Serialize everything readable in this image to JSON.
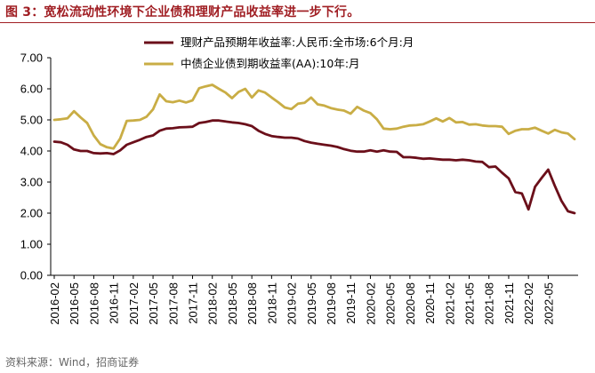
{
  "header": {
    "figure_title": "图 3：宽松流动性环境下企业债和理财产品收益率进一步下行。"
  },
  "footer": {
    "source": "资料来源：Wind，招商证券"
  },
  "colors": {
    "title": "#a01e23",
    "series_wmp": "#6b0f1a",
    "series_bond": "#c9ad45"
  },
  "chart_data": {
    "type": "line",
    "title": "图 3：宽松流动性环境下企业债和理财产品收益率进一步下行。",
    "xlabel": "",
    "ylabel": "",
    "ylim": [
      0,
      7
    ],
    "yticks": [
      "0.00",
      "1.00",
      "2.00",
      "3.00",
      "4.00",
      "5.00",
      "6.00",
      "7.00"
    ],
    "x_start": "2016-02",
    "x_end": "2022-06",
    "xtick_labels": [
      "2016-02",
      "2016-05",
      "2016-08",
      "2016-11",
      "2017-02",
      "2017-05",
      "2017-08",
      "2017-11",
      "2018-02",
      "2018-05",
      "2018-08",
      "2018-11",
      "2019-02",
      "2019-05",
      "2019-08",
      "2019-11",
      "2020-02",
      "2020-05",
      "2020-08",
      "2020-11",
      "2021-02",
      "2021-05",
      "2021-08",
      "2021-11",
      "2022-02",
      "2022-05"
    ],
    "legend_position": "top",
    "series": [
      {
        "name": "理财产品预期年收益率:人民币:全市场:6个月:月",
        "values": [
          4.3,
          4.28,
          4.2,
          4.05,
          4.0,
          4.0,
          3.93,
          3.92,
          3.93,
          3.9,
          4.02,
          4.2,
          4.28,
          4.36,
          4.45,
          4.5,
          4.65,
          4.72,
          4.73,
          4.76,
          4.77,
          4.78,
          4.9,
          4.93,
          4.98,
          4.98,
          4.95,
          4.92,
          4.9,
          4.86,
          4.8,
          4.65,
          4.55,
          4.48,
          4.45,
          4.43,
          4.43,
          4.4,
          4.32,
          4.27,
          4.23,
          4.2,
          4.17,
          4.13,
          4.06,
          4.01,
          3.98,
          3.98,
          4.02,
          3.98,
          4.02,
          3.98,
          3.97,
          3.8,
          3.8,
          3.78,
          3.75,
          3.76,
          3.74,
          3.72,
          3.72,
          3.7,
          3.72,
          3.7,
          3.66,
          3.65,
          3.48,
          3.5,
          3.3,
          3.12,
          2.68,
          2.63,
          2.12,
          2.85,
          3.13,
          3.4,
          2.88,
          2.4,
          2.06,
          2.0
        ]
      },
      {
        "name": "中债企业债到期收益率(AA):10年:月",
        "values": [
          5.0,
          5.02,
          5.05,
          5.28,
          5.08,
          4.9,
          4.5,
          4.22,
          4.12,
          4.08,
          4.4,
          4.97,
          4.98,
          5.0,
          5.1,
          5.34,
          5.82,
          5.6,
          5.57,
          5.62,
          5.56,
          5.63,
          6.02,
          6.08,
          6.13,
          6.0,
          5.88,
          5.7,
          5.9,
          6.0,
          5.72,
          5.95,
          5.88,
          5.72,
          5.57,
          5.4,
          5.35,
          5.52,
          5.55,
          5.72,
          5.5,
          5.46,
          5.38,
          5.33,
          5.3,
          5.2,
          5.42,
          5.3,
          5.22,
          5.02,
          4.72,
          4.7,
          4.72,
          4.78,
          4.82,
          4.83,
          4.86,
          4.95,
          5.05,
          4.95,
          5.06,
          4.92,
          4.93,
          4.85,
          4.86,
          4.82,
          4.8,
          4.8,
          4.78,
          4.55,
          4.65,
          4.7,
          4.7,
          4.75,
          4.65,
          4.56,
          4.68,
          4.6,
          4.56,
          4.38
        ]
      }
    ]
  }
}
